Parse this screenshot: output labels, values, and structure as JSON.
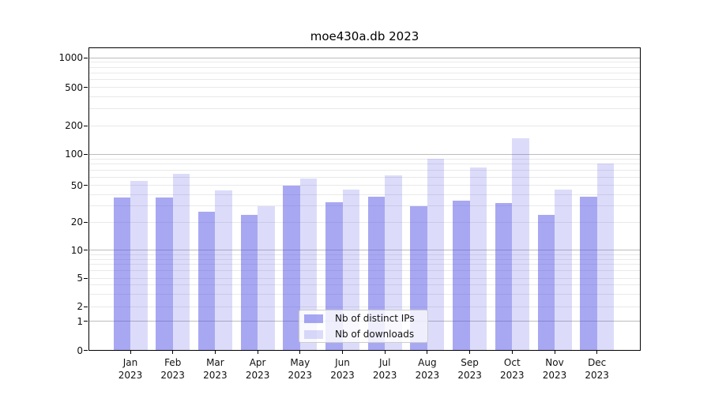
{
  "chart_data": {
    "type": "bar",
    "title": "moe430a.db 2023",
    "categories": [
      "Jan",
      "Feb",
      "Mar",
      "Apr",
      "May",
      "Jun",
      "Jul",
      "Aug",
      "Sep",
      "Oct",
      "Nov",
      "Dec"
    ],
    "x_year_label": "2023",
    "series": [
      {
        "name": "Nb of distinct IPs",
        "color_hex": "#a8a8f1",
        "css_color": "rgba(81,81,230,0.5)",
        "values": [
          37,
          37,
          26,
          24,
          50,
          33,
          38,
          30,
          34,
          32,
          24,
          38
        ]
      },
      {
        "name": "Nb of downloads",
        "color_hex": "#dcdcfa",
        "css_color": "rgba(81,81,230,0.2)",
        "values": [
          55,
          65,
          44,
          30,
          58,
          45,
          63,
          90,
          75,
          147,
          45,
          81
        ]
      }
    ],
    "yscale": "log-with-zero-baseline",
    "ylim": [
      0,
      1000
    ],
    "y_ticks": [
      0,
      1,
      2,
      5,
      10,
      20,
      50,
      100,
      200,
      500,
      1000
    ],
    "y_major_gridlines": [
      1,
      10,
      100,
      1000
    ],
    "y_minor_multipliers": [
      2,
      3,
      4,
      5,
      6,
      7,
      8,
      9
    ],
    "grid": true,
    "legend_position": "lower center"
  },
  "colors": {
    "background": "#ffffff",
    "axis": "#000000",
    "grid_major": "#bdbdbd",
    "grid_minor": "#e9e9e9",
    "text": "#111111",
    "legend_border": "#cccccc"
  }
}
